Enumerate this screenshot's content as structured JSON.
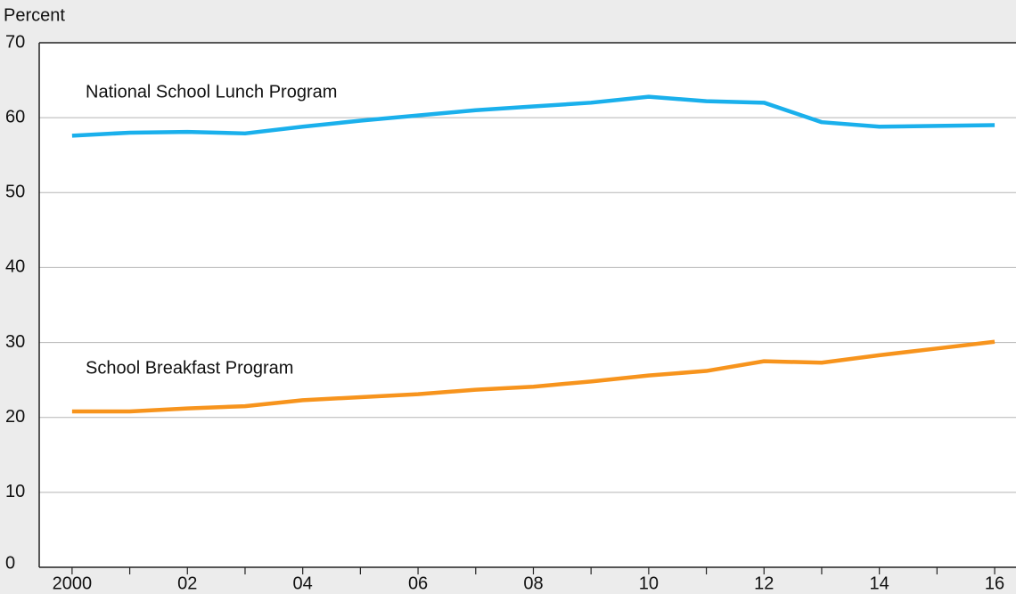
{
  "chart_data": {
    "type": "line",
    "y_label": "Percent",
    "x": [
      2000,
      2001,
      2002,
      2003,
      2004,
      2005,
      2006,
      2007,
      2008,
      2009,
      2010,
      2011,
      2012,
      2013,
      2014,
      2015,
      2016
    ],
    "series": [
      {
        "name": "National School Lunch Program",
        "color": "#1ab0ec",
        "values": [
          57.6,
          58.0,
          58.1,
          57.9,
          58.8,
          59.6,
          60.3,
          61.0,
          61.5,
          62.0,
          62.8,
          62.2,
          62.0,
          59.4,
          58.8,
          58.9,
          59.0
        ]
      },
      {
        "name": "School Breakfast Program",
        "color": "#f7941d",
        "values": [
          20.8,
          20.8,
          21.2,
          21.5,
          22.3,
          22.7,
          23.1,
          23.7,
          24.1,
          24.8,
          25.6,
          26.2,
          27.5,
          27.3,
          28.3,
          29.2,
          30.1
        ]
      }
    ],
    "xlim": [
      1999.43,
      2016.37
    ],
    "xticks": [
      {
        "value": 2000,
        "label": "2000"
      },
      {
        "value": 2002,
        "label": "02"
      },
      {
        "value": 2004,
        "label": "04"
      },
      {
        "value": 2006,
        "label": "06"
      },
      {
        "value": 2008,
        "label": "08"
      },
      {
        "value": 2010,
        "label": "10"
      },
      {
        "value": 2012,
        "label": "12"
      },
      {
        "value": 2014,
        "label": "14"
      },
      {
        "value": 2016,
        "label": "16"
      }
    ],
    "xminorticks": [
      2001,
      2003,
      2005,
      2007,
      2009,
      2011,
      2013,
      2015
    ],
    "ylim": [
      0,
      70
    ],
    "yticks": [
      0,
      10,
      20,
      30,
      40,
      50,
      60,
      70
    ],
    "grid": true
  }
}
